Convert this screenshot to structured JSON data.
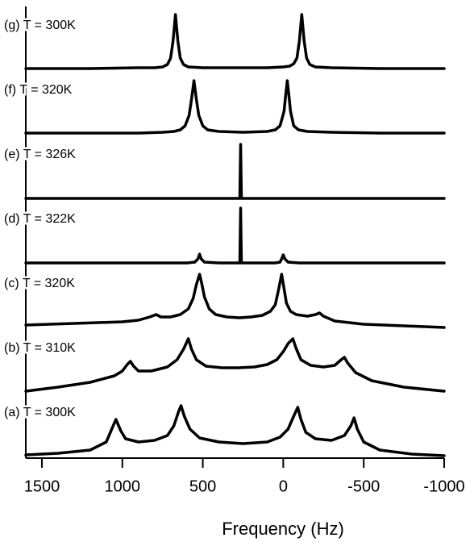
{
  "chart_data": {
    "type": "line",
    "xlabel": "Frequency (Hz)",
    "xlim": [
      1600,
      -1000
    ],
    "xticks": [
      1500,
      1000,
      500,
      0,
      -500,
      -1000
    ],
    "ylim": [
      0,
      80
    ],
    "series": [
      {
        "name": "(g) T = 300K",
        "color": "#000000",
        "x": [
          1600,
          1200,
          900,
          800,
          750,
          720,
          700,
          685,
          670,
          655,
          640,
          620,
          590,
          500,
          300,
          100,
          0,
          -40,
          -65,
          -85,
          -100,
          -115,
          -130,
          -145,
          -165,
          -200,
          -300,
          -600,
          -1000
        ],
        "values": [
          3,
          3,
          4,
          4,
          5,
          8,
          16,
          37,
          70,
          37,
          16,
          8,
          5,
          4,
          4,
          4,
          5,
          6,
          9,
          16,
          37,
          70,
          37,
          16,
          8,
          5,
          4,
          3,
          3
        ]
      },
      {
        "name": "(f) T = 320K",
        "color": "#000000",
        "x": [
          1600,
          1200,
          900,
          750,
          680,
          640,
          610,
          585,
          570,
          555,
          540,
          525,
          500,
          470,
          400,
          250,
          100,
          50,
          20,
          -5,
          -15,
          -25,
          -35,
          -45,
          -65,
          -95,
          -150,
          -300,
          -600,
          -1000
        ],
        "values": [
          3,
          3,
          3,
          4,
          5,
          7,
          12,
          25,
          45,
          68,
          45,
          25,
          12,
          7,
          5,
          4,
          5,
          7,
          12,
          30,
          50,
          68,
          50,
          30,
          12,
          7,
          5,
          4,
          3,
          3
        ]
      },
      {
        "name": "(e) T = 326K",
        "color": "#000000",
        "x": [
          1600,
          280,
          270,
          265,
          260,
          -1000
        ],
        "values": [
          2,
          2,
          2,
          69,
          2,
          2
        ]
      },
      {
        "name": "(d) T = 322K",
        "color": "#000000",
        "x": [
          1600,
          600,
          550,
          530,
          520,
          510,
          490,
          400,
          270,
          265,
          260,
          50,
          20,
          10,
          0,
          -10,
          -30,
          -100,
          -1000
        ],
        "values": [
          2,
          2,
          3,
          7,
          13,
          7,
          3,
          2,
          2,
          70,
          2,
          2,
          3,
          7,
          12,
          7,
          3,
          2,
          2
        ]
      },
      {
        "name": "(c) T = 320K",
        "color": "#000000",
        "x": [
          1600,
          1300,
          1000,
          900,
          830,
          790,
          760,
          700,
          640,
          590,
          560,
          540,
          520,
          505,
          490,
          460,
          420,
          350,
          270,
          200,
          130,
          80,
          50,
          30,
          10,
          -5,
          -20,
          -45,
          -80,
          -150,
          -200,
          -225,
          -250,
          -320,
          -500,
          -750,
          -1000
        ],
        "values": [
          5,
          7,
          9,
          11,
          15,
          18,
          15,
          15,
          18,
          25,
          38,
          55,
          68,
          55,
          40,
          25,
          18,
          15,
          14,
          15,
          17,
          22,
          30,
          48,
          68,
          50,
          32,
          22,
          18,
          16,
          18,
          20,
          16,
          10,
          6,
          4,
          2
        ]
      },
      {
        "name": "(b) T = 310K",
        "color": "#000000",
        "x": [
          1600,
          1400,
          1200,
          1050,
          1000,
          970,
          950,
          930,
          900,
          820,
          720,
          660,
          620,
          590,
          570,
          540,
          480,
          380,
          280,
          180,
          100,
          40,
          0,
          -30,
          -60,
          -80,
          -110,
          -170,
          -250,
          -320,
          -360,
          -380,
          -400,
          -450,
          -550,
          -750,
          -1000
        ],
        "values": [
          3,
          8,
          14,
          22,
          28,
          36,
          40,
          34,
          28,
          28,
          33,
          42,
          55,
          68,
          55,
          42,
          34,
          32,
          32,
          33,
          36,
          42,
          52,
          62,
          68,
          56,
          42,
          35,
          33,
          35,
          42,
          45,
          38,
          26,
          16,
          8,
          3
        ]
      },
      {
        "name": "(a) T = 300K",
        "color": "#000000",
        "x": [
          1600,
          1400,
          1200,
          1100,
          1070,
          1040,
          1010,
          980,
          900,
          800,
          720,
          680,
          650,
          635,
          615,
          580,
          520,
          400,
          250,
          100,
          20,
          -30,
          -65,
          -90,
          -110,
          -140,
          -200,
          -300,
          -380,
          -420,
          -440,
          -460,
          -500,
          -600,
          -800,
          -1000
        ],
        "values": [
          4,
          6,
          10,
          20,
          34,
          48,
          34,
          24,
          20,
          22,
          28,
          40,
          58,
          65,
          52,
          36,
          25,
          20,
          18,
          20,
          26,
          36,
          52,
          63,
          48,
          32,
          24,
          22,
          28,
          40,
          50,
          36,
          20,
          10,
          5,
          3
        ]
      }
    ]
  }
}
